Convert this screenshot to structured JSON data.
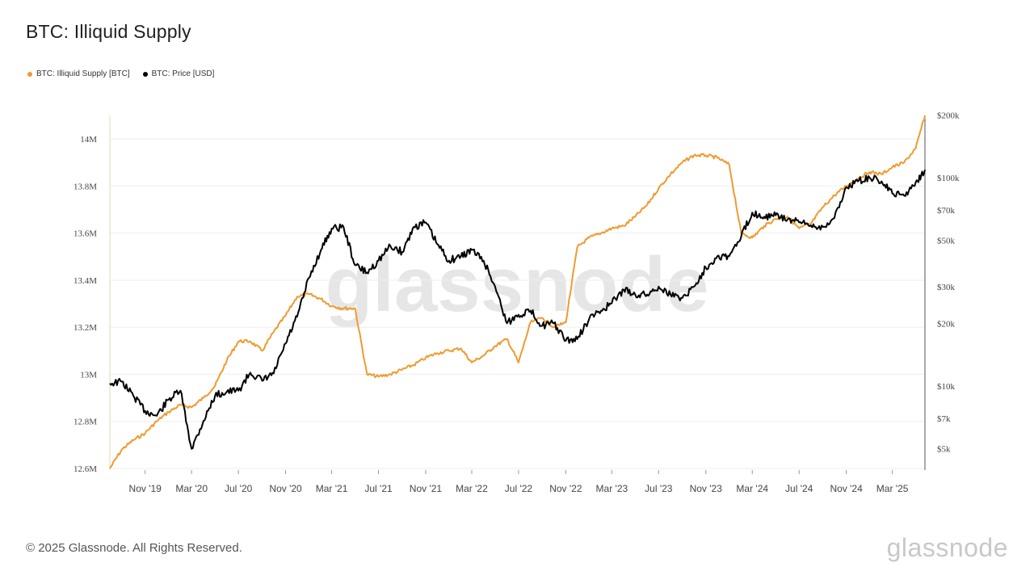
{
  "title": "BTC: Illiquid Supply",
  "footer": "© 2025 Glassnode. All Rights Reserved.",
  "brand": "glassnode",
  "watermark": "glassnode",
  "colors": {
    "illiquid": "#f09a2f",
    "price": "#000000",
    "grid": "#eeeeee",
    "axis": "#555555"
  },
  "legend": [
    {
      "label": "BTC: Illiquid Supply [BTC]",
      "color": "#f09a2f"
    },
    {
      "label": "BTC: Price [USD]",
      "color": "#000000"
    }
  ],
  "chart_data": {
    "type": "line",
    "title": "BTC: Illiquid Supply",
    "x_axis": {
      "type": "date",
      "range": [
        "2019-08-01",
        "2025-05-25"
      ],
      "ticks": [
        "Nov '19",
        "Mar '20",
        "Jul '20",
        "Nov '20",
        "Mar '21",
        "Jul '21",
        "Nov '21",
        "Mar '22",
        "Jul '22",
        "Nov '22",
        "Mar '23",
        "Jul '23",
        "Nov '23",
        "Mar '24",
        "Jul '24",
        "Nov '24",
        "Mar '25"
      ],
      "tick_dates": [
        "2019-11-01",
        "2020-03-01",
        "2020-07-01",
        "2020-11-01",
        "2021-03-01",
        "2021-07-01",
        "2021-11-01",
        "2022-03-01",
        "2022-07-01",
        "2022-11-01",
        "2023-03-01",
        "2023-07-01",
        "2023-11-01",
        "2024-03-01",
        "2024-07-01",
        "2024-11-01",
        "2025-03-01"
      ]
    },
    "y_left": {
      "range": [
        12.6,
        14.1
      ],
      "unit": "M",
      "ticks": [
        "12.6M",
        "12.8M",
        "13M",
        "13.2M",
        "13.4M",
        "13.6M",
        "13.8M",
        "14M"
      ],
      "tick_values": [
        12.6,
        12.8,
        13.0,
        13.2,
        13.4,
        13.6,
        13.8,
        14.0
      ]
    },
    "y_right": {
      "scale": "log",
      "range": [
        3500,
        200000
      ],
      "ticks": [
        "$5k",
        "$7k",
        "$10k",
        "$20k",
        "$30k",
        "$50k",
        "$70k",
        "$100k",
        "$200k"
      ],
      "tick_values": [
        5000,
        7000,
        10000,
        20000,
        30000,
        50000,
        70000,
        100000,
        200000
      ]
    },
    "grid": true,
    "legend_position": "top-left",
    "series": [
      {
        "name": "BTC: Illiquid Supply [BTC]",
        "axis": "left",
        "color": "#f09a2f",
        "x": [
          "2019-08-01",
          "2019-09-01",
          "2019-10-01",
          "2019-11-01",
          "2019-12-01",
          "2020-01-01",
          "2020-02-01",
          "2020-03-01",
          "2020-04-01",
          "2020-05-01",
          "2020-06-01",
          "2020-07-01",
          "2020-08-01",
          "2020-09-01",
          "2020-10-01",
          "2020-11-01",
          "2020-12-01",
          "2021-01-01",
          "2021-02-01",
          "2021-03-01",
          "2021-04-01",
          "2021-05-01",
          "2021-06-01",
          "2021-07-01",
          "2021-08-01",
          "2021-09-01",
          "2021-10-01",
          "2021-11-01",
          "2021-12-01",
          "2022-01-01",
          "2022-02-01",
          "2022-03-01",
          "2022-04-01",
          "2022-05-01",
          "2022-06-01",
          "2022-07-01",
          "2022-08-01",
          "2022-09-01",
          "2022-10-01",
          "2022-11-01",
          "2022-12-01",
          "2023-01-01",
          "2023-02-01",
          "2023-03-01",
          "2023-04-01",
          "2023-05-01",
          "2023-06-01",
          "2023-07-01",
          "2023-08-01",
          "2023-09-01",
          "2023-10-01",
          "2023-11-01",
          "2023-12-01",
          "2024-01-01",
          "2024-02-01",
          "2024-03-01",
          "2024-04-01",
          "2024-05-01",
          "2024-06-01",
          "2024-07-01",
          "2024-08-01",
          "2024-09-01",
          "2024-10-01",
          "2024-11-01",
          "2024-12-01",
          "2025-01-01",
          "2025-02-01",
          "2025-03-01",
          "2025-04-01",
          "2025-05-01",
          "2025-05-25"
        ],
        "y": [
          12.6,
          12.68,
          12.72,
          12.75,
          12.8,
          12.84,
          12.87,
          12.86,
          12.9,
          12.95,
          13.06,
          13.14,
          13.14,
          13.1,
          13.18,
          13.25,
          13.33,
          13.34,
          13.32,
          13.29,
          13.28,
          13.28,
          13.0,
          12.99,
          13.0,
          13.02,
          13.04,
          13.07,
          13.09,
          13.1,
          13.11,
          13.05,
          13.08,
          13.12,
          13.15,
          13.05,
          13.22,
          13.24,
          13.2,
          13.22,
          13.54,
          13.58,
          13.6,
          13.62,
          13.63,
          13.67,
          13.72,
          13.79,
          13.85,
          13.9,
          13.93,
          13.93,
          13.92,
          13.89,
          13.6,
          13.58,
          13.63,
          13.66,
          13.67,
          13.62,
          13.64,
          13.71,
          13.76,
          13.8,
          13.83,
          13.86,
          13.85,
          13.88,
          13.9,
          13.96,
          14.1
        ]
      },
      {
        "name": "BTC: Price [USD]",
        "axis": "right",
        "color": "#000000",
        "x": [
          "2019-08-01",
          "2019-09-01",
          "2019-10-01",
          "2019-11-01",
          "2019-12-01",
          "2020-01-01",
          "2020-02-01",
          "2020-03-01",
          "2020-04-01",
          "2020-05-01",
          "2020-06-01",
          "2020-07-01",
          "2020-08-01",
          "2020-09-01",
          "2020-10-01",
          "2020-11-01",
          "2020-12-01",
          "2021-01-01",
          "2021-02-01",
          "2021-03-01",
          "2021-04-01",
          "2021-05-01",
          "2021-06-01",
          "2021-07-01",
          "2021-08-01",
          "2021-09-01",
          "2021-10-01",
          "2021-11-01",
          "2021-12-01",
          "2022-01-01",
          "2022-02-01",
          "2022-03-01",
          "2022-04-01",
          "2022-05-01",
          "2022-06-01",
          "2022-07-01",
          "2022-08-01",
          "2022-09-01",
          "2022-10-01",
          "2022-11-01",
          "2022-12-01",
          "2023-01-01",
          "2023-02-01",
          "2023-03-01",
          "2023-04-01",
          "2023-05-01",
          "2023-06-01",
          "2023-07-01",
          "2023-08-01",
          "2023-09-01",
          "2023-10-01",
          "2023-11-01",
          "2023-12-01",
          "2024-01-01",
          "2024-02-01",
          "2024-03-01",
          "2024-04-01",
          "2024-05-01",
          "2024-06-01",
          "2024-07-01",
          "2024-08-01",
          "2024-09-01",
          "2024-10-01",
          "2024-11-01",
          "2024-12-01",
          "2025-01-01",
          "2025-02-01",
          "2025-03-01",
          "2025-04-01",
          "2025-05-01",
          "2025-05-25"
        ],
        "y": [
          10300,
          10500,
          9000,
          7600,
          7200,
          8600,
          9500,
          5000,
          6800,
          9000,
          9400,
          9500,
          11600,
          10600,
          11500,
          16000,
          21500,
          33000,
          45000,
          57000,
          58000,
          38000,
          35000,
          40000,
          47000,
          44000,
          58000,
          61000,
          48000,
          40000,
          42000,
          45000,
          40000,
          30000,
          20000,
          22000,
          23000,
          19500,
          20000,
          16500,
          16800,
          21000,
          23000,
          25000,
          29000,
          27500,
          27500,
          30000,
          27500,
          26500,
          30000,
          37000,
          42000,
          42000,
          52000,
          68000,
          65000,
          66000,
          63000,
          61000,
          59000,
          58000,
          64000,
          90000,
          96000,
          100000,
          96000,
          84000,
          82000,
          95000,
          109000
        ]
      }
    ]
  }
}
